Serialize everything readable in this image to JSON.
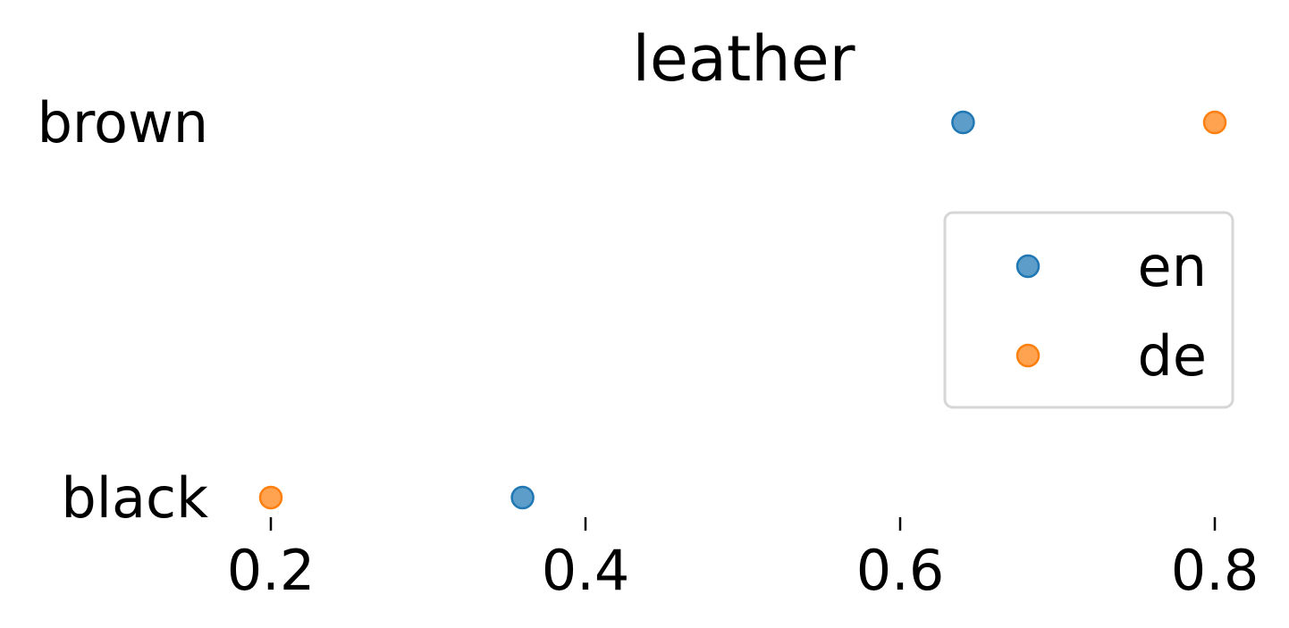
{
  "chart_data": {
    "type": "scatter",
    "title": "leather",
    "xlabel": "",
    "ylabel": "",
    "categories": [
      "brown",
      "black"
    ],
    "x_ticks": [
      "0.2",
      "0.4",
      "0.6",
      "0.8"
    ],
    "xlim": [
      0.2,
      0.8
    ],
    "grid": false,
    "legend_position": "center-right",
    "series": [
      {
        "name": "en",
        "color": "#1f77b4",
        "values": [
          0.64,
          0.36
        ]
      },
      {
        "name": "de",
        "color": "#ff7f0e",
        "values": [
          0.8,
          0.2
        ]
      }
    ]
  }
}
